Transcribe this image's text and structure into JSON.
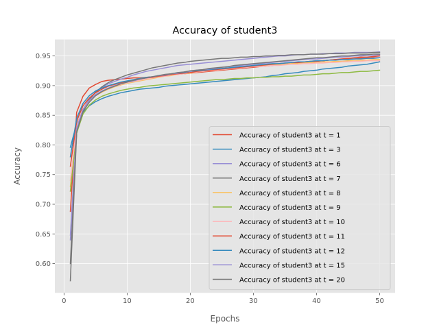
{
  "chart_data": {
    "type": "line",
    "title": "Accuracy of student3",
    "xlabel": "Epochs",
    "ylabel": "Accuracy",
    "xlim": [
      -1.45,
      52.45
    ],
    "ylim": [
      0.5507,
      0.9778
    ],
    "xticks": [
      0,
      10,
      20,
      30,
      40,
      50
    ],
    "yticks": [
      0.6,
      0.65,
      0.7,
      0.75,
      0.8,
      0.85,
      0.9,
      0.95
    ],
    "grid": true,
    "legend_position": "lower-right",
    "x": [
      1,
      2,
      3,
      4,
      5,
      6,
      7,
      8,
      9,
      10,
      11,
      12,
      13,
      14,
      15,
      16,
      17,
      18,
      19,
      20,
      21,
      22,
      23,
      24,
      25,
      26,
      27,
      28,
      29,
      30,
      31,
      32,
      33,
      34,
      35,
      36,
      37,
      38,
      39,
      40,
      41,
      42,
      43,
      44,
      45,
      46,
      47,
      48,
      49,
      50
    ],
    "series": [
      {
        "name": "Accuracy of student3 at t = 1",
        "color": "#E24A33",
        "values": [
          0.688,
          0.855,
          0.882,
          0.896,
          0.902,
          0.907,
          0.909,
          0.91,
          0.911,
          0.912,
          0.913,
          0.913,
          0.914,
          0.915,
          0.916,
          0.917,
          0.918,
          0.919,
          0.92,
          0.921,
          0.922,
          0.923,
          0.924,
          0.925,
          0.926,
          0.927,
          0.928,
          0.929,
          0.93,
          0.931,
          0.932,
          0.933,
          0.934,
          0.935,
          0.936,
          0.937,
          0.938,
          0.939,
          0.94,
          0.941,
          0.942,
          0.943,
          0.944,
          0.945,
          0.946,
          0.947,
          0.948,
          0.948,
          0.949,
          0.95
        ]
      },
      {
        "name": "Accuracy of student3 at t = 3",
        "color": "#348ABD",
        "values": [
          0.796,
          0.836,
          0.855,
          0.866,
          0.873,
          0.878,
          0.882,
          0.885,
          0.888,
          0.89,
          0.892,
          0.894,
          0.895,
          0.896,
          0.897,
          0.899,
          0.9,
          0.901,
          0.902,
          0.903,
          0.904,
          0.905,
          0.906,
          0.907,
          0.908,
          0.909,
          0.91,
          0.911,
          0.912,
          0.913,
          0.914,
          0.915,
          0.917,
          0.918,
          0.92,
          0.921,
          0.922,
          0.924,
          0.925,
          0.926,
          0.928,
          0.929,
          0.93,
          0.931,
          0.933,
          0.934,
          0.935,
          0.936,
          0.938,
          0.94
        ]
      },
      {
        "name": "Accuracy of student3 at t = 6",
        "color": "#988ED5",
        "values": [
          0.64,
          0.82,
          0.86,
          0.878,
          0.889,
          0.897,
          0.903,
          0.907,
          0.911,
          0.914,
          0.918,
          0.921,
          0.924,
          0.926,
          0.928,
          0.93,
          0.932,
          0.934,
          0.935,
          0.936,
          0.937,
          0.938,
          0.939,
          0.94,
          0.941,
          0.942,
          0.943,
          0.944,
          0.945,
          0.946,
          0.947,
          0.948,
          0.949,
          0.95,
          0.95,
          0.951,
          0.952,
          0.952,
          0.953,
          0.953,
          0.954,
          0.954,
          0.955,
          0.955,
          0.955,
          0.956,
          0.956,
          0.956,
          0.956,
          0.957
        ]
      },
      {
        "name": "Accuracy of student3 at t = 7",
        "color": "#777777",
        "values": [
          0.571,
          0.82,
          0.858,
          0.876,
          0.889,
          0.898,
          0.905,
          0.91,
          0.914,
          0.918,
          0.921,
          0.924,
          0.927,
          0.93,
          0.932,
          0.934,
          0.936,
          0.938,
          0.939,
          0.941,
          0.942,
          0.943,
          0.944,
          0.945,
          0.946,
          0.946,
          0.947,
          0.948,
          0.948,
          0.949,
          0.949,
          0.95,
          0.95,
          0.951,
          0.951,
          0.952,
          0.952,
          0.952,
          0.953,
          0.953,
          0.953,
          0.954,
          0.954,
          0.954,
          0.955,
          0.955,
          0.955,
          0.955,
          0.956,
          0.956
        ]
      },
      {
        "name": "Accuracy of student3 at t = 8",
        "color": "#FBC15E",
        "values": [
          0.73,
          0.83,
          0.86,
          0.874,
          0.883,
          0.889,
          0.894,
          0.898,
          0.901,
          0.904,
          0.906,
          0.908,
          0.91,
          0.912,
          0.914,
          0.916,
          0.917,
          0.919,
          0.92,
          0.921,
          0.923,
          0.924,
          0.925,
          0.926,
          0.927,
          0.928,
          0.929,
          0.93,
          0.931,
          0.932,
          0.933,
          0.934,
          0.935,
          0.935,
          0.936,
          0.937,
          0.937,
          0.938,
          0.939,
          0.939,
          0.94,
          0.94,
          0.941,
          0.941,
          0.942,
          0.942,
          0.943,
          0.943,
          0.944,
          0.944
        ]
      },
      {
        "name": "Accuracy of student3 at t = 9",
        "color": "#8EBA42",
        "values": [
          0.722,
          0.82,
          0.852,
          0.867,
          0.876,
          0.882,
          0.886,
          0.889,
          0.892,
          0.894,
          0.896,
          0.897,
          0.899,
          0.9,
          0.901,
          0.902,
          0.903,
          0.904,
          0.905,
          0.906,
          0.907,
          0.908,
          0.909,
          0.91,
          0.91,
          0.911,
          0.912,
          0.912,
          0.913,
          0.913,
          0.914,
          0.914,
          0.915,
          0.915,
          0.916,
          0.916,
          0.917,
          0.918,
          0.918,
          0.919,
          0.92,
          0.92,
          0.921,
          0.922,
          0.922,
          0.923,
          0.924,
          0.924,
          0.925,
          0.926
        ]
      },
      {
        "name": "Accuracy of student3 at t = 10",
        "color": "#FFB5B8",
        "values": [
          0.74,
          0.832,
          0.861,
          0.875,
          0.884,
          0.89,
          0.895,
          0.899,
          0.902,
          0.905,
          0.907,
          0.909,
          0.911,
          0.913,
          0.915,
          0.916,
          0.918,
          0.919,
          0.92,
          0.922,
          0.923,
          0.924,
          0.925,
          0.926,
          0.927,
          0.928,
          0.929,
          0.93,
          0.931,
          0.932,
          0.932,
          0.933,
          0.934,
          0.934,
          0.935,
          0.936,
          0.936,
          0.937,
          0.937,
          0.938,
          0.938,
          0.939,
          0.939,
          0.94,
          0.94,
          0.941,
          0.941,
          0.942,
          0.942,
          0.942
        ]
      },
      {
        "name": "Accuracy of student3 at t = 11",
        "color": "#E24A33",
        "values": [
          0.764,
          0.84,
          0.866,
          0.879,
          0.888,
          0.894,
          0.899,
          0.902,
          0.905,
          0.907,
          0.909,
          0.911,
          0.913,
          0.914,
          0.916,
          0.917,
          0.919,
          0.92,
          0.921,
          0.922,
          0.924,
          0.925,
          0.926,
          0.927,
          0.928,
          0.929,
          0.93,
          0.931,
          0.932,
          0.933,
          0.934,
          0.935,
          0.936,
          0.937,
          0.938,
          0.939,
          0.939,
          0.94,
          0.941,
          0.942,
          0.942,
          0.943,
          0.944,
          0.944,
          0.945,
          0.945,
          0.946,
          0.946,
          0.947,
          0.947
        ]
      },
      {
        "name": "Accuracy of student3 at t = 12",
        "color": "#348ABD",
        "values": [
          0.78,
          0.845,
          0.87,
          0.883,
          0.891,
          0.896,
          0.9,
          0.903,
          0.906,
          0.908,
          0.91,
          0.912,
          0.914,
          0.915,
          0.917,
          0.918,
          0.92,
          0.921,
          0.922,
          0.924,
          0.925,
          0.926,
          0.927,
          0.928,
          0.929,
          0.93,
          0.931,
          0.932,
          0.933,
          0.934,
          0.935,
          0.936,
          0.937,
          0.937,
          0.938,
          0.939,
          0.94,
          0.94,
          0.941,
          0.942,
          0.942,
          0.943,
          0.943,
          0.944,
          0.944,
          0.945,
          0.945,
          0.946,
          0.946,
          0.947
        ]
      },
      {
        "name": "Accuracy of student3 at t = 15",
        "color": "#988ED5",
        "values": [
          0.648,
          0.828,
          0.86,
          0.875,
          0.885,
          0.891,
          0.896,
          0.9,
          0.903,
          0.906,
          0.908,
          0.911,
          0.913,
          0.915,
          0.917,
          0.918,
          0.92,
          0.921,
          0.923,
          0.924,
          0.926,
          0.927,
          0.928,
          0.929,
          0.931,
          0.932,
          0.933,
          0.934,
          0.935,
          0.936,
          0.937,
          0.938,
          0.939,
          0.94,
          0.941,
          0.942,
          0.943,
          0.944,
          0.945,
          0.945,
          0.946,
          0.947,
          0.948,
          0.948,
          0.949,
          0.95,
          0.95,
          0.951,
          0.951,
          0.952
        ]
      },
      {
        "name": "Accuracy of student3 at t = 20",
        "color": "#777777",
        "values": [
          0.6,
          0.822,
          0.856,
          0.872,
          0.883,
          0.89,
          0.895,
          0.899,
          0.903,
          0.906,
          0.909,
          0.911,
          0.913,
          0.915,
          0.917,
          0.919,
          0.92,
          0.922,
          0.923,
          0.925,
          0.926,
          0.927,
          0.929,
          0.93,
          0.931,
          0.932,
          0.934,
          0.935,
          0.936,
          0.937,
          0.938,
          0.939,
          0.94,
          0.941,
          0.942,
          0.943,
          0.944,
          0.945,
          0.946,
          0.947,
          0.947,
          0.948,
          0.949,
          0.95,
          0.95,
          0.951,
          0.952,
          0.952,
          0.953,
          0.953
        ]
      }
    ]
  }
}
